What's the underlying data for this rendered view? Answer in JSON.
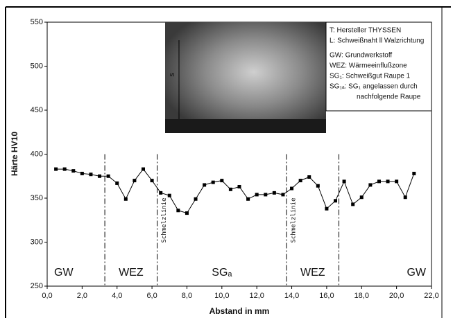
{
  "chart_data": {
    "type": "line",
    "ylabel": "Härte HV10",
    "xlabel": "Abstand in mm",
    "x": [
      0.5,
      1.0,
      1.5,
      2.0,
      2.5,
      3.0,
      3.5,
      4.0,
      4.5,
      5.0,
      5.5,
      6.0,
      6.5,
      7.0,
      7.5,
      8.0,
      8.5,
      9.0,
      9.5,
      10.0,
      10.5,
      11.0,
      11.5,
      12.0,
      12.5,
      13.0,
      13.5,
      14.0,
      14.5,
      15.0,
      15.5,
      16.0,
      16.5,
      17.0,
      17.5,
      18.0,
      18.5,
      19.0,
      19.5,
      20.0,
      20.5,
      21.0
    ],
    "series": [
      {
        "color": "#000000",
        "values": [
          383,
          383,
          381,
          378,
          377,
          375,
          375,
          367,
          349,
          370,
          383,
          370,
          356,
          353,
          336,
          333,
          349,
          365,
          368,
          370,
          360,
          363,
          349,
          354,
          354,
          356,
          354,
          361,
          370,
          374,
          364,
          338,
          347,
          369,
          343,
          351,
          365,
          369,
          369,
          369,
          351,
          378
        ]
      }
    ],
    "xlim": [
      0,
      22
    ],
    "ylim": [
      250,
      550
    ],
    "xticks": [
      {
        "value": 0,
        "label": "0,0"
      },
      {
        "value": 2,
        "label": "2,0"
      },
      {
        "value": 4,
        "label": "4,0"
      },
      {
        "value": 6,
        "label": "6,0"
      },
      {
        "value": 8,
        "label": "8,0"
      },
      {
        "value": 10,
        "label": "10,0"
      },
      {
        "value": 12,
        "label": "12,0"
      },
      {
        "value": 14,
        "label": "14,0"
      },
      {
        "value": 16,
        "label": "16,0"
      },
      {
        "value": 18,
        "label": "18,0"
      },
      {
        "value": 20,
        "label": "20,0"
      },
      {
        "value": 22,
        "label": "22,0"
      }
    ],
    "yticks": [
      250,
      300,
      350,
      400,
      450,
      500,
      550
    ],
    "boundaries": [
      3.3,
      6.3,
      13.7,
      16.7
    ],
    "zones": [
      "GW",
      "WEZ",
      "SGₐ",
      "WEZ",
      "GW"
    ],
    "fusion_line_label": "Schmelzlinie",
    "image_label": "s",
    "legend_lines": [
      "T: Hersteller THYSSEN",
      "L: Schweißnaht ll Walzrichtung",
      "GW:  Grundwerkstoff",
      "WEZ: Wärmeeinflußzone",
      "SG₁:  Schweißgut Raupe 1",
      "SG₁ₐ: SG₁ angelassen durch",
      "nachfolgende Raupe"
    ]
  }
}
